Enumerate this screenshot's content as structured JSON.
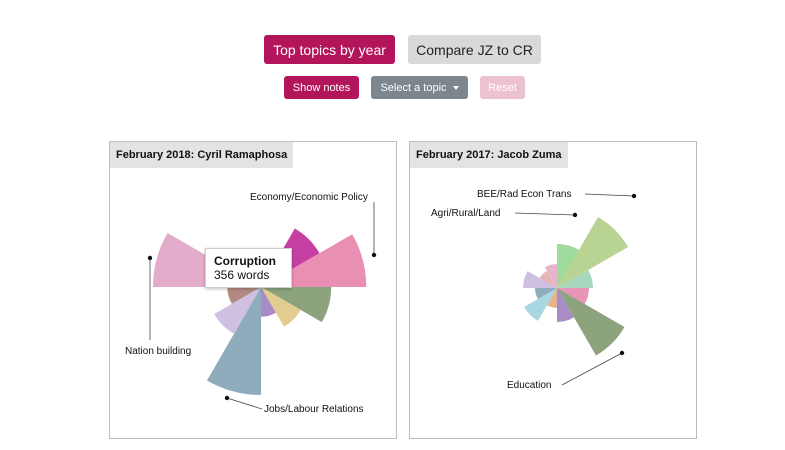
{
  "toolbar": {
    "top_topics_label": "Top topics by year",
    "compare_label": "Compare JZ to CR",
    "show_notes_label": "Show notes",
    "select_topic_label": "Select a topic",
    "reset_label": "Reset"
  },
  "panels": [
    {
      "title": "February 2018: Cyril Ramaphosa",
      "labels": [
        "Economy/Economic Policy",
        "Nation building",
        "Jobs/Labour Relations"
      ],
      "tooltip": {
        "title": "Corruption",
        "value": "356 words"
      },
      "chart_data": {
        "type": "polar-area",
        "wedges": [
          {
            "color": "#9fd99b",
            "size": 0.24
          },
          {
            "color": "#c640a4",
            "size": 0.5
          },
          {
            "color": "#ea8fb4",
            "size": 0.78
          },
          {
            "color": "#8da37e",
            "size": 0.52
          },
          {
            "color": "#e2cc8f",
            "size": 0.34
          },
          {
            "color": "#a88cc6",
            "size": 0.22
          },
          {
            "color": "#8facbd",
            "size": 0.8
          },
          {
            "color": "#cfc0e1",
            "size": 0.4
          },
          {
            "color": "#b38a82",
            "size": 0.25
          },
          {
            "color": "#e3acca",
            "size": 0.8
          },
          {
            "color": "#c49494",
            "size": 0.3
          },
          {
            "color": "#6e6e6e",
            "size": 0.26
          }
        ]
      }
    },
    {
      "title": "February 2017: Jacob Zuma",
      "labels": [
        "BEE/Rad Econ Trans",
        "Agri/Rural/Land",
        "Education"
      ],
      "chart_data": {
        "type": "polar-area",
        "wedges": [
          {
            "color": "#9fd99b",
            "size": 0.44
          },
          {
            "color": "#b8d392",
            "size": 0.82
          },
          {
            "color": "#a6d9bd",
            "size": 0.36
          },
          {
            "color": "#e695b7",
            "size": 0.32
          },
          {
            "color": "#8da37e",
            "size": 0.78
          },
          {
            "color": "#a88cc6",
            "size": 0.34
          },
          {
            "color": "#e7b48e",
            "size": 0.2
          },
          {
            "color": "#a9d7e1",
            "size": 0.38
          },
          {
            "color": "#8facbd",
            "size": 0.22
          },
          {
            "color": "#cfc0e1",
            "size": 0.34
          },
          {
            "color": "#e6b5b5",
            "size": 0.2
          },
          {
            "color": "#e7b5cb",
            "size": 0.24
          }
        ]
      }
    }
  ]
}
